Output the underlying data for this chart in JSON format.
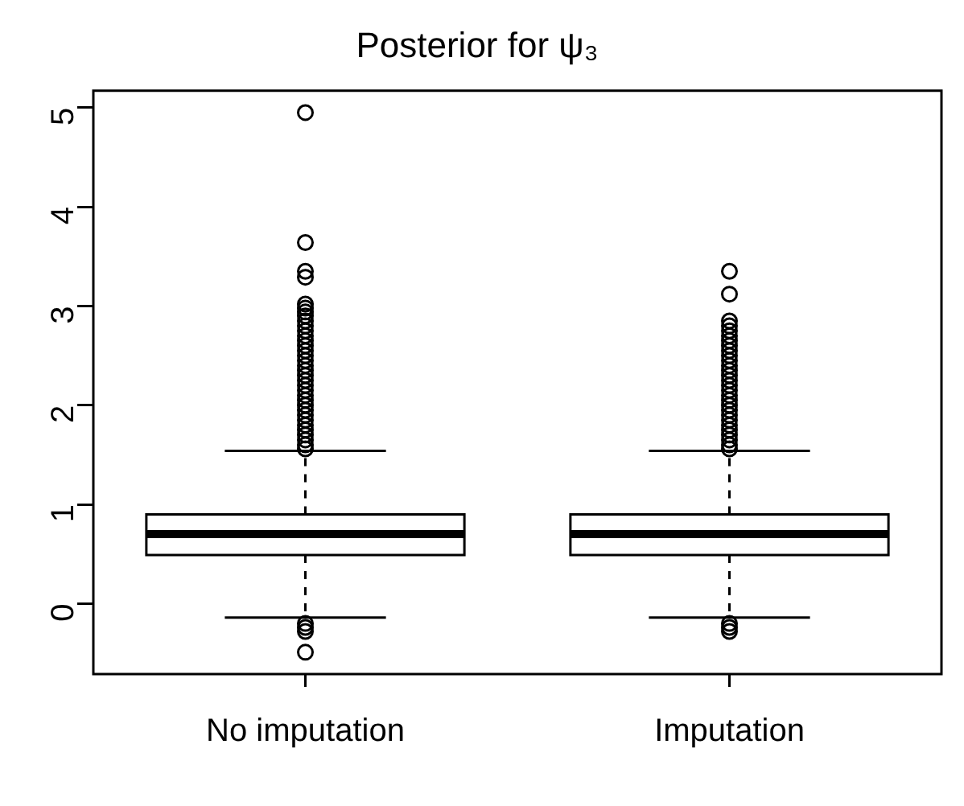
{
  "chart_data": {
    "type": "box",
    "title": "Posterior for ψ₃",
    "categories": [
      "No imputation",
      "Imputation"
    ],
    "ylim": [
      -0.71,
      5.17
    ],
    "yticks": [
      0,
      1,
      2,
      3,
      4,
      5
    ],
    "grid": false,
    "legend": false,
    "boxes": [
      {
        "low": -0.14,
        "q1": 0.49,
        "median": 0.7,
        "q3": 0.9,
        "high": 1.54,
        "outliers": [
          4.95,
          3.64,
          3.35,
          3.29,
          3.02,
          2.98,
          2.94,
          2.9,
          2.85,
          2.8,
          2.75,
          2.7,
          2.65,
          2.6,
          2.55,
          2.5,
          2.45,
          2.4,
          2.35,
          2.3,
          2.25,
          2.2,
          2.15,
          2.1,
          2.05,
          2.0,
          1.95,
          1.9,
          1.85,
          1.8,
          1.75,
          1.7,
          1.65,
          1.6,
          1.56,
          -0.2,
          -0.24,
          -0.28,
          -0.49
        ]
      },
      {
        "low": -0.14,
        "q1": 0.49,
        "median": 0.7,
        "q3": 0.9,
        "high": 1.54,
        "outliers": [
          3.35,
          3.12,
          2.85,
          2.8,
          2.75,
          2.7,
          2.65,
          2.6,
          2.55,
          2.5,
          2.45,
          2.4,
          2.35,
          2.3,
          2.25,
          2.2,
          2.15,
          2.1,
          2.05,
          2.0,
          1.95,
          1.9,
          1.85,
          1.8,
          1.75,
          1.7,
          1.65,
          1.6,
          1.56,
          -0.2,
          -0.24,
          -0.28
        ]
      }
    ]
  }
}
